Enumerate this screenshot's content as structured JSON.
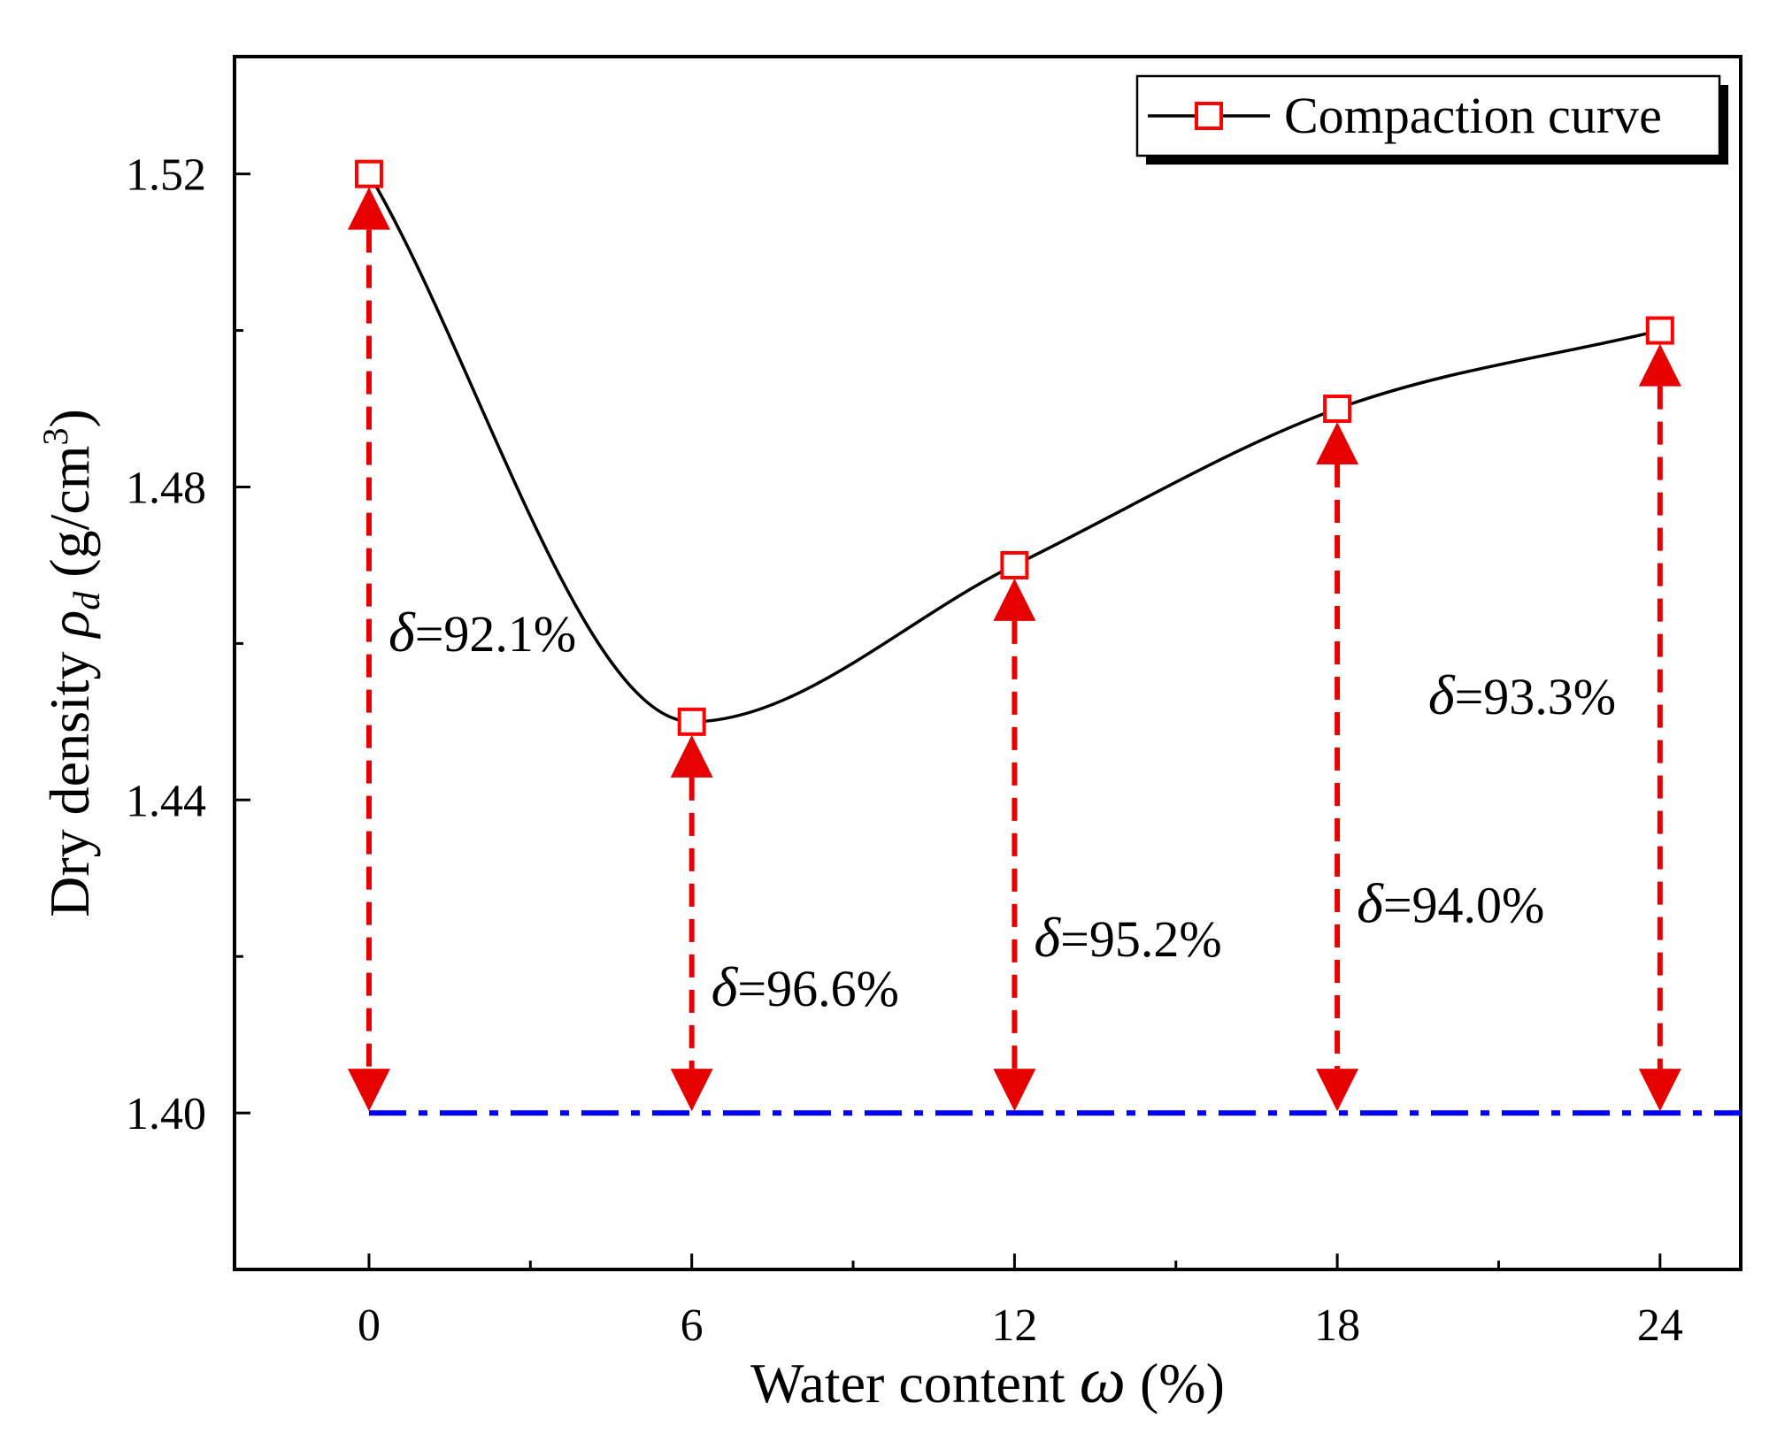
{
  "chart_data": {
    "type": "line",
    "title": "",
    "xlabel": "Water content",
    "xlabel_symbol": "ω",
    "xlabel_unit": "(%)",
    "ylabel": "Dry density",
    "ylabel_symbol": "ρ",
    "ylabel_subscript": "d",
    "ylabel_unit_prefix": "(g/cm",
    "ylabel_unit_sup": "3",
    "ylabel_unit_suffix": ")",
    "xlim": [
      -2.5,
      25.5
    ],
    "ylim": [
      1.38,
      1.535
    ],
    "x_ticks": [
      0,
      6,
      12,
      18,
      24
    ],
    "x_tick_labels": [
      "0",
      "6",
      "12",
      "18",
      "24"
    ],
    "x_minor_ticks": [
      3,
      9,
      15,
      21
    ],
    "y_ticks": [
      1.4,
      1.44,
      1.48,
      1.52
    ],
    "y_tick_labels": [
      "1.40",
      "1.44",
      "1.48",
      "1.52"
    ],
    "y_minor_ticks": [
      1.42,
      1.46,
      1.5
    ],
    "series": [
      {
        "name": "Compaction curve",
        "x": [
          0,
          6,
          12,
          18,
          24
        ],
        "values": [
          1.52,
          1.45,
          1.47,
          1.49,
          1.5
        ],
        "line_color": "#000000",
        "marker": "square",
        "marker_color": "#ff0000"
      }
    ],
    "reference_line": {
      "y": 1.4,
      "style": "dash-dot",
      "color": "#0000ff"
    },
    "arrow_color": "#e60000",
    "annotations": [
      {
        "x": 0,
        "symbol": "δ",
        "text": "=92.1%",
        "label_y": 1.459
      },
      {
        "x": 6,
        "symbol": "δ",
        "text": "=96.6%",
        "label_y": 1.4137
      },
      {
        "x": 12,
        "symbol": "δ",
        "text": "=95.2%",
        "label_y": 1.42
      },
      {
        "x": 18,
        "symbol": "δ",
        "text": "=94.0%",
        "label_y": 1.4244
      },
      {
        "x": 24,
        "symbol": "δ",
        "text": "=93.3%",
        "label_y": 1.451
      }
    ],
    "legend": {
      "label": "Compaction curve",
      "position": "top-right"
    }
  }
}
